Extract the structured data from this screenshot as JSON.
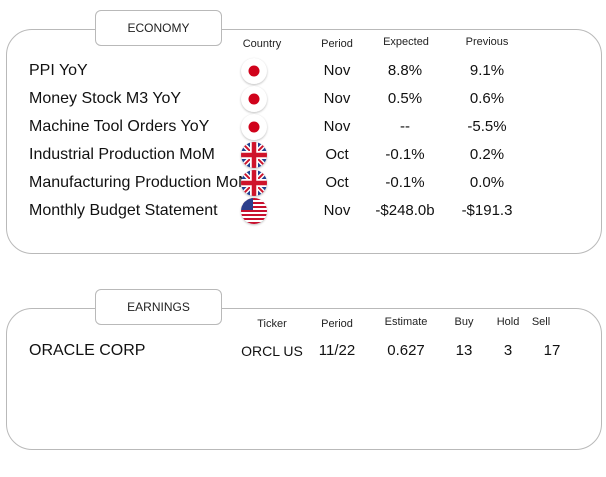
{
  "economy": {
    "title": "ECONOMY",
    "headers": {
      "country": "Country",
      "period": "Period",
      "expected": "Expected",
      "previous": "Previous"
    },
    "rows": [
      {
        "name": "PPI YoY",
        "country": "japan-flag-icon",
        "period": "Nov",
        "expected": "8.8%",
        "previous": "9.1%"
      },
      {
        "name": "Money Stock M3 YoY",
        "country": "japan-flag-icon",
        "period": "Nov",
        "expected": "0.5%",
        "previous": "0.6%"
      },
      {
        "name": "Machine Tool Orders YoY",
        "country": "japan-flag-icon",
        "period": "Nov",
        "expected": "--",
        "previous": "-5.5%"
      },
      {
        "name": "Industrial Production MoM",
        "country": "uk-flag-icon",
        "period": "Oct",
        "expected": "-0.1%",
        "previous": "0.2%"
      },
      {
        "name": "Manufacturing Production MoM",
        "country": "uk-flag-icon",
        "period": "Oct",
        "expected": "-0.1%",
        "previous": "0.0%"
      },
      {
        "name": "Monthly Budget Statement",
        "country": "us-flag-icon",
        "period": "Nov",
        "expected": "-$248.0b",
        "previous": "-$191.3"
      }
    ]
  },
  "earnings": {
    "title": "EARNINGS",
    "headers": {
      "ticker": "Ticker",
      "period": "Period",
      "estimate": "Estimate",
      "buy": "Buy",
      "hold": "Hold",
      "sell": "Sell"
    },
    "rows": [
      {
        "name": "ORACLE CORP",
        "ticker": "ORCL US",
        "period": "11/22",
        "estimate": "0.627",
        "buy": "13",
        "hold": "3",
        "sell": "17"
      }
    ]
  }
}
